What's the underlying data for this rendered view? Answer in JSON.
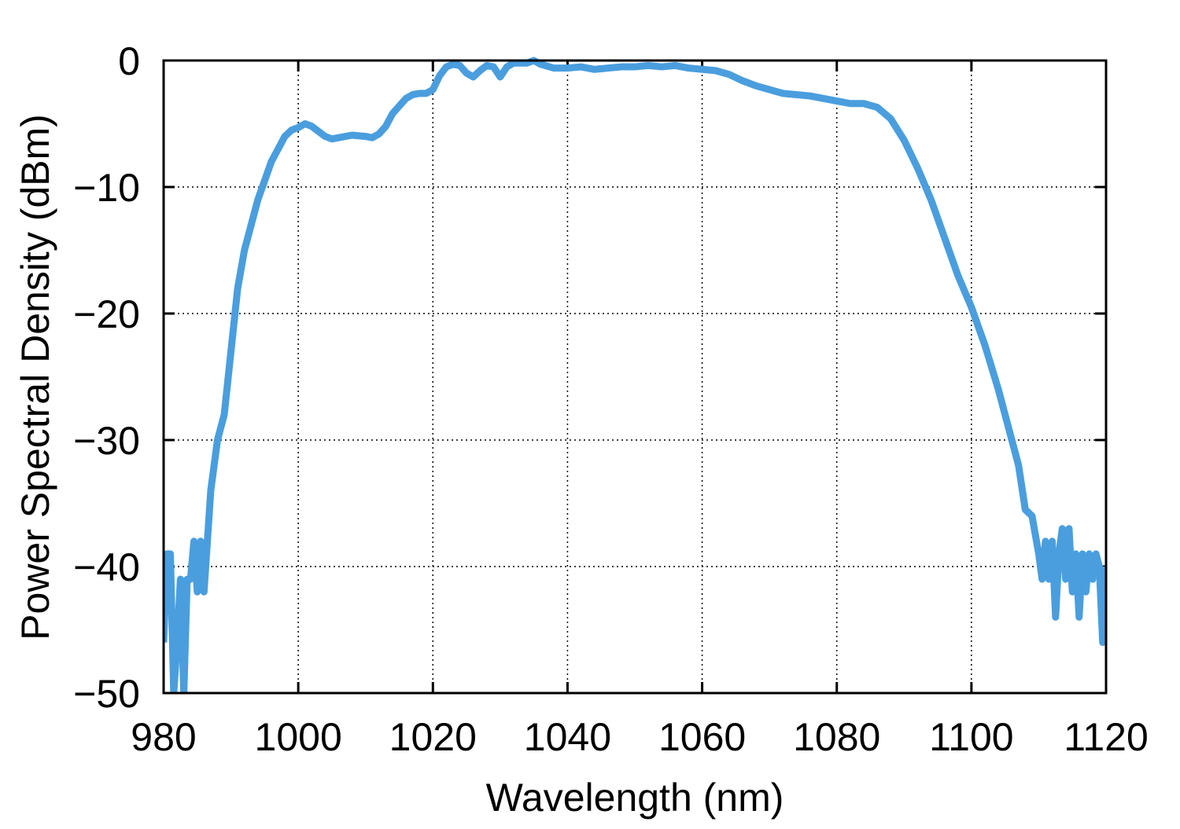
{
  "chart_data": {
    "type": "line",
    "xlabel": "Wavelength (nm)",
    "ylabel": "Power Spectral Density (dBm)",
    "xlim": [
      980,
      1120
    ],
    "xticks": [
      980,
      1000,
      1020,
      1040,
      1060,
      1080,
      1100,
      1120
    ],
    "ylim": [
      -50,
      0
    ],
    "yticks": [
      {
        "value": -50,
        "label": "−50"
      },
      {
        "value": -40,
        "label": "−40"
      },
      {
        "value": -30,
        "label": "−30"
      },
      {
        "value": -20,
        "label": "−20"
      },
      {
        "value": -10,
        "label": "−10"
      },
      0
    ],
    "grid": true,
    "series": [
      {
        "color": "#4a9ede",
        "x": [
          980,
          980.5,
          981,
          981.5,
          982,
          982.5,
          983,
          983.5,
          984,
          984.5,
          985,
          985.5,
          986,
          986.5,
          987,
          988,
          989,
          990,
          991,
          992,
          993,
          994,
          995,
          996,
          997,
          998,
          999,
          1000,
          1001,
          1002,
          1003,
          1004,
          1005,
          1006,
          1008,
          1010,
          1011,
          1012,
          1013,
          1014,
          1015,
          1016,
          1017,
          1018,
          1019,
          1020,
          1021,
          1022,
          1023,
          1024,
          1025,
          1026,
          1027,
          1028,
          1029,
          1030,
          1031,
          1032,
          1034,
          1035,
          1036,
          1038,
          1040,
          1042,
          1044,
          1046,
          1048,
          1050,
          1052,
          1054,
          1056,
          1058,
          1060,
          1062,
          1064,
          1066,
          1068,
          1070,
          1072,
          1074,
          1076,
          1078,
          1080,
          1082,
          1084,
          1086,
          1088,
          1090,
          1092,
          1094,
          1096,
          1098,
          1100,
          1102,
          1104,
          1106,
          1107,
          1108,
          1109,
          1110,
          1110.5,
          1111,
          1111.5,
          1112,
          1112.5,
          1113,
          1113.5,
          1114,
          1114.5,
          1115,
          1115.5,
          1116,
          1116.5,
          1117,
          1117.5,
          1118,
          1118.5,
          1119,
          1119.5,
          1120
        ],
        "values": [
          -46,
          -39,
          -39,
          -50,
          -46,
          -41,
          -50,
          -41,
          -41,
          -38,
          -42,
          -38,
          -42,
          -38,
          -34,
          -30,
          -28,
          -23,
          -18,
          -15,
          -13,
          -11,
          -9.5,
          -8,
          -7,
          -6,
          -5.5,
          -5.3,
          -5,
          -5.2,
          -5.6,
          -6,
          -6.2,
          -6.1,
          -5.9,
          -6,
          -6.1,
          -5.8,
          -5.2,
          -4.2,
          -3.6,
          -3,
          -2.7,
          -2.6,
          -2.6,
          -2.3,
          -1.2,
          -0.5,
          -0.3,
          -0.4,
          -1,
          -1.3,
          -0.8,
          -0.4,
          -0.5,
          -1.3,
          -0.5,
          -0.2,
          -0.2,
          0,
          -0.3,
          -0.6,
          -0.6,
          -0.5,
          -0.7,
          -0.6,
          -0.5,
          -0.5,
          -0.4,
          -0.5,
          -0.4,
          -0.6,
          -0.7,
          -0.8,
          -1.1,
          -1.6,
          -2,
          -2.3,
          -2.6,
          -2.7,
          -2.8,
          -3,
          -3.2,
          -3.4,
          -3.4,
          -3.7,
          -4.6,
          -6.3,
          -8.5,
          -11,
          -14,
          -17,
          -19.5,
          -22.5,
          -26,
          -30,
          -32,
          -35.5,
          -36,
          -39,
          -41,
          -38,
          -41,
          -38,
          -44,
          -39,
          -37,
          -41,
          -37,
          -42,
          -39,
          -44,
          -39,
          -42,
          -39,
          -41,
          -39,
          -40,
          -46,
          -40
        ]
      }
    ]
  }
}
